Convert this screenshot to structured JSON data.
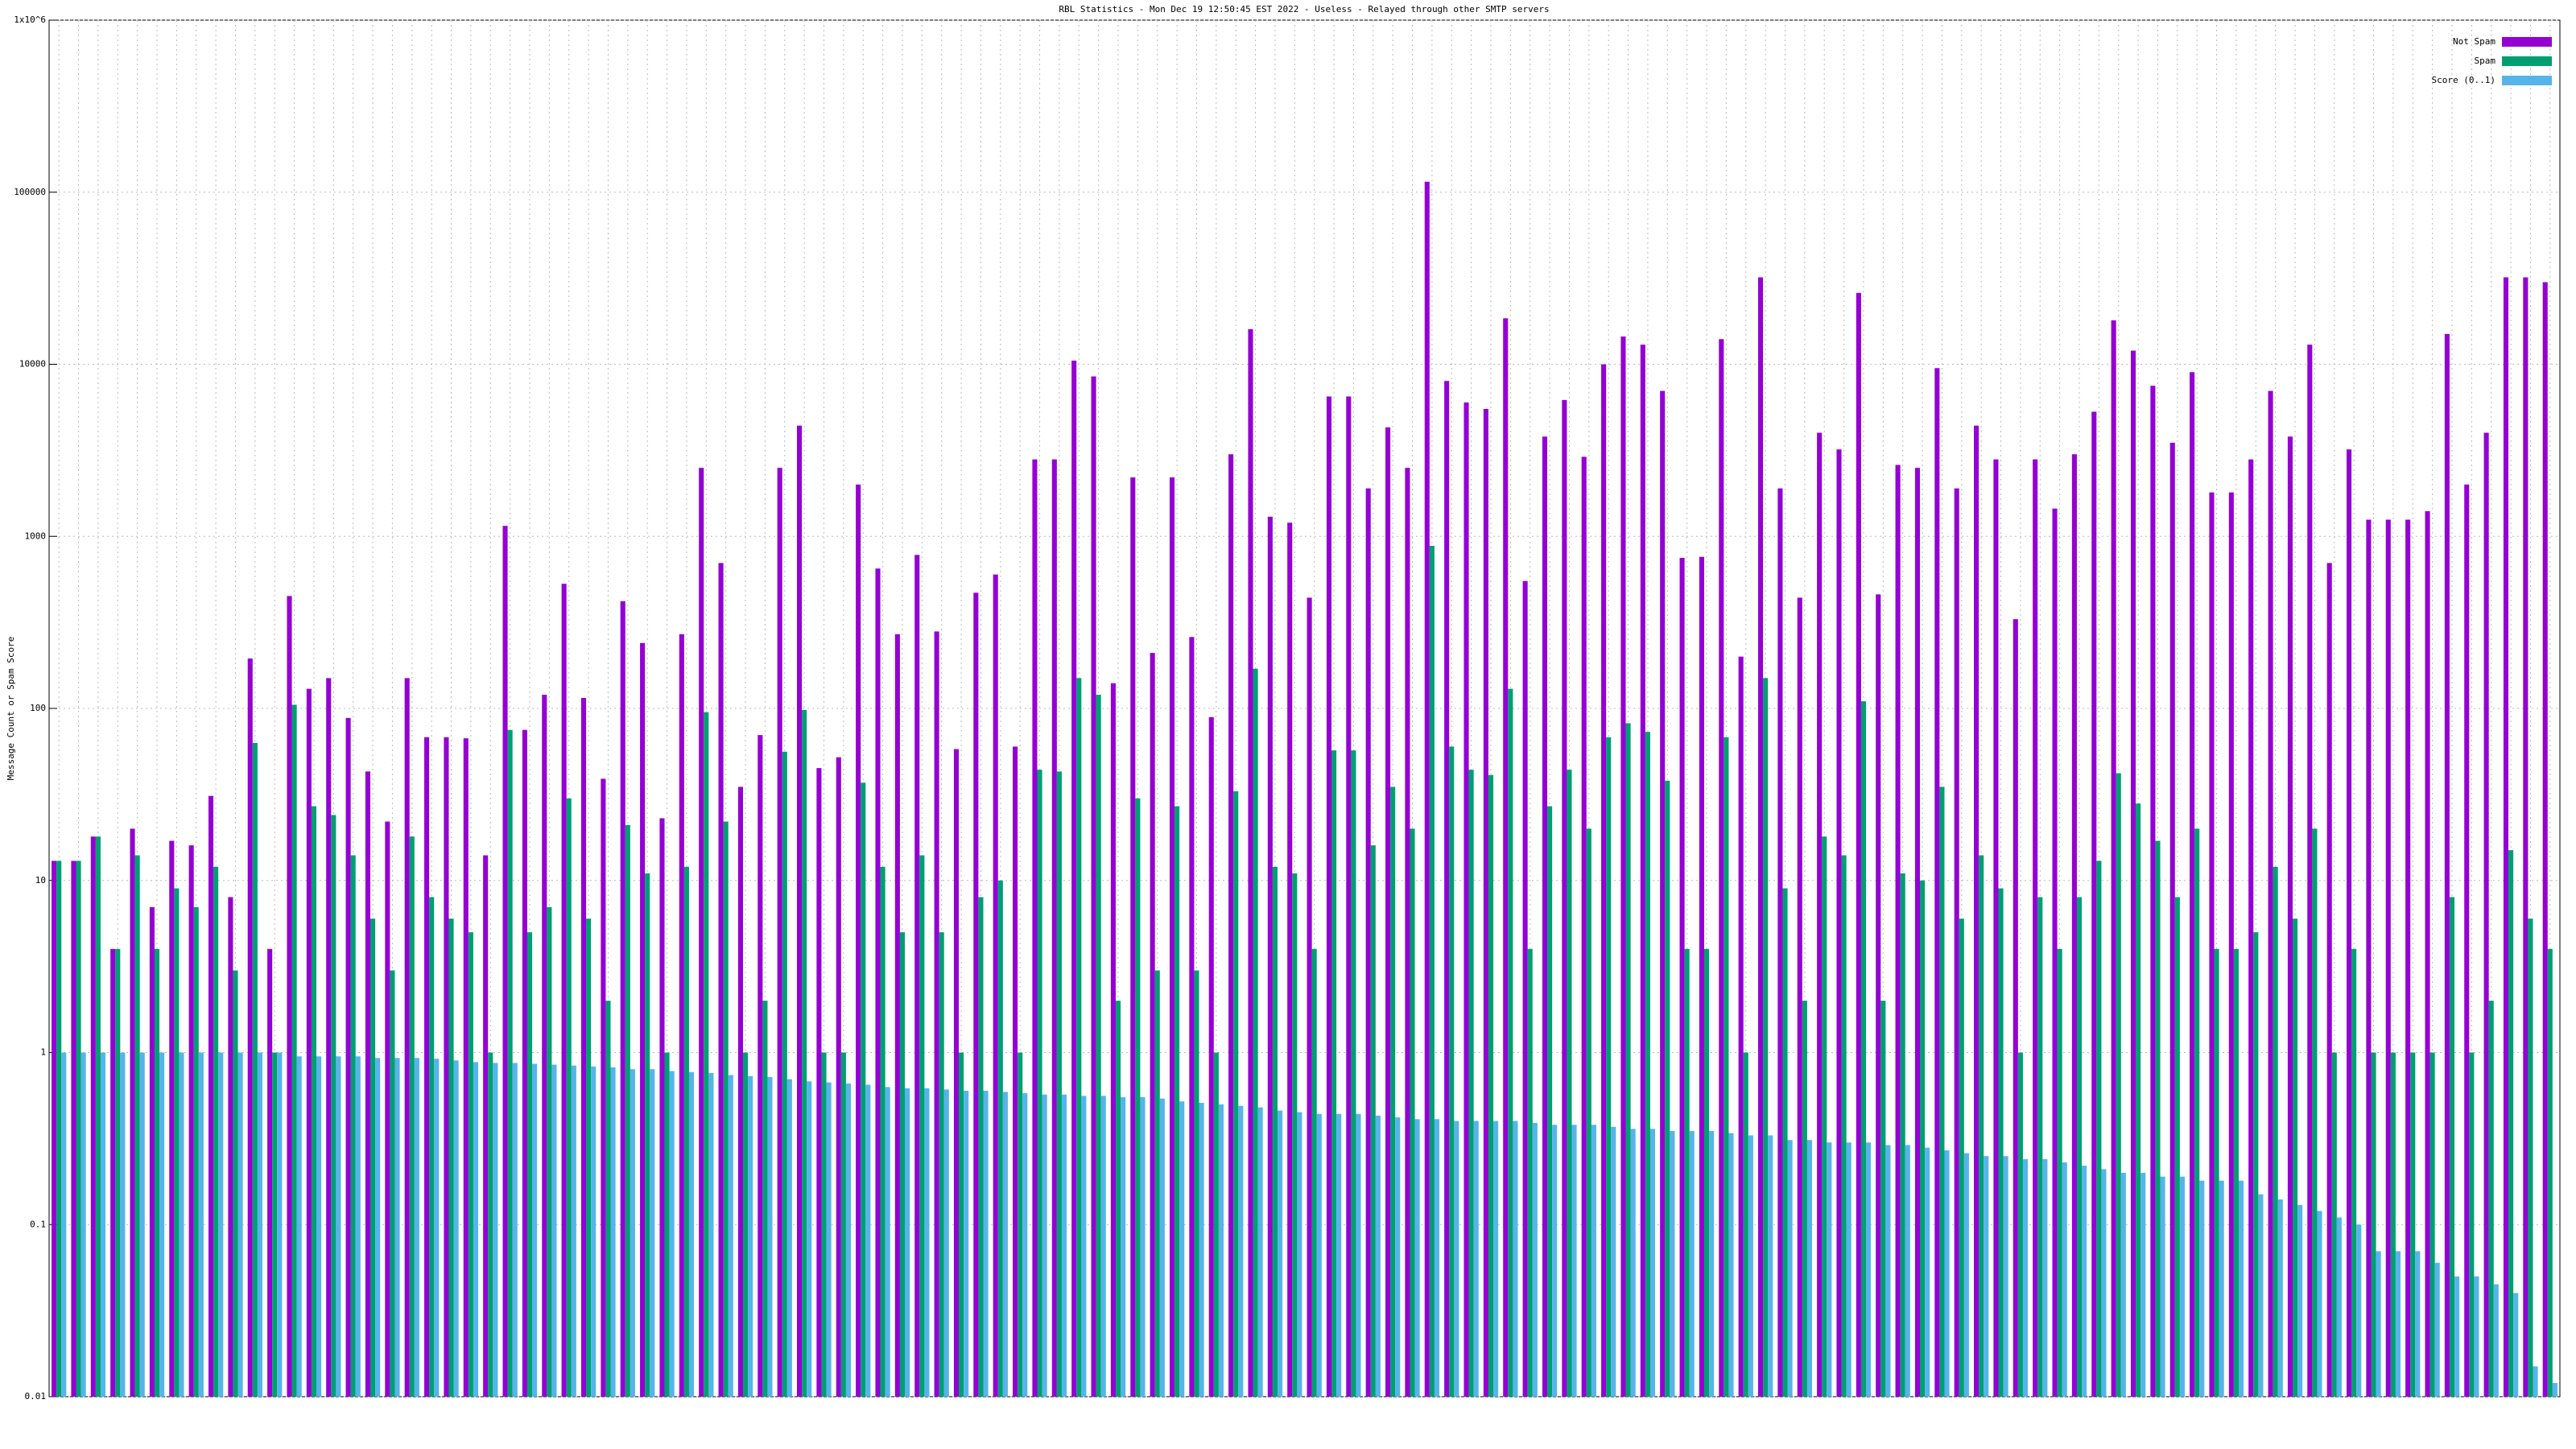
{
  "chart_data": {
    "type": "bar",
    "title": "RBL Statistics - Mon Dec 19 12:50:45 EST 2022 - Useless - Relayed through other SMTP servers",
    "y_label": "Message Count or Spam Score",
    "log_y": true,
    "grid": true,
    "legend": "top-right",
    "ylim": [
      0.01,
      1000000
    ],
    "yticks": [
      {
        "value": 0.01,
        "label": "0.01"
      },
      {
        "value": 0.1,
        "label": "0.1"
      },
      1,
      10,
      100,
      1000,
      10000,
      100000,
      {
        "value": 1000000,
        "label": "1x10^6"
      }
    ],
    "categories": [
      null,
      null,
      null,
      null,
      null,
      null,
      null,
      null,
      null,
      null,
      null,
      null,
      null,
      null,
      null,
      null,
      null,
      null,
      null,
      null,
      null,
      null,
      null,
      null,
      null,
      null,
      null,
      null,
      null,
      null,
      null,
      null,
      null,
      null,
      null,
      null,
      null,
      null,
      null,
      null,
      null,
      null,
      null,
      null,
      null,
      null,
      null,
      null,
      null,
      null,
      null,
      null,
      null,
      null,
      null,
      null,
      null,
      null,
      null,
      null,
      null,
      null,
      null,
      null,
      null,
      null,
      null,
      null,
      null,
      null,
      null,
      null,
      null,
      null,
      null,
      null,
      null,
      null,
      null,
      null,
      null,
      null,
      null,
      null,
      null,
      null,
      null,
      null,
      null,
      null,
      null,
      null,
      null,
      null,
      null,
      null,
      null,
      null,
      null,
      null,
      null,
      null,
      null,
      null,
      null,
      null,
      null,
      null,
      null,
      null,
      null,
      null,
      null,
      null,
      null,
      null,
      null,
      null,
      null,
      null,
      null,
      null,
      null,
      null,
      null,
      null,
      null,
      null
    ],
    "series": [
      {
        "name": "Not Spam",
        "color": "#9400d3",
        "values": [
          13,
          13,
          18,
          4,
          20,
          7,
          17,
          16,
          31,
          8,
          195,
          4,
          450,
          130,
          150,
          88,
          43,
          22,
          150,
          68,
          68,
          67,
          14,
          1150,
          75,
          120,
          530,
          115,
          39,
          420,
          240,
          23,
          270,
          2500,
          700,
          35,
          70,
          2500,
          4400,
          45,
          52,
          2000,
          650,
          270,
          780,
          280,
          58,
          470,
          600,
          60,
          2800,
          2800,
          10500,
          8500,
          140,
          2200,
          210,
          2200,
          260,
          89,
          3000,
          16000,
          1300,
          1200,
          440,
          6500,
          6500,
          1900,
          4300,
          2500,
          115000,
          8000,
          6000,
          5500,
          18500,
          550,
          3800,
          6200,
          2900,
          10000,
          14500,
          13000,
          7000,
          750,
          760,
          14000,
          200,
          32000,
          1900,
          440,
          4000,
          3200,
          26000,
          460,
          2600,
          2500,
          9500,
          1900,
          4400,
          2800,
          330,
          2800,
          1450,
          3000,
          5300,
          18000,
          12000,
          7500,
          3500,
          9000,
          1800,
          1800,
          2800,
          7000,
          3800,
          13000,
          700,
          3200,
          1250,
          1250,
          1250,
          1400,
          15000,
          2000,
          4000,
          32000,
          32000,
          30000
        ]
      },
      {
        "name": "Spam",
        "color": "#009e73",
        "values": [
          13,
          13,
          18,
          4,
          14,
          4,
          9,
          7,
          12,
          3,
          63,
          1,
          105,
          27,
          24,
          14,
          6,
          3,
          18,
          8,
          6,
          5,
          1,
          75,
          5,
          7,
          30,
          6,
          2,
          21,
          11,
          1,
          12,
          95,
          22,
          1,
          2,
          56,
          98,
          1,
          1,
          37,
          12,
          5,
          14,
          5,
          1,
          8,
          10,
          1,
          44,
          43,
          150,
          120,
          2,
          30,
          3,
          27,
          3,
          1,
          33,
          170,
          12,
          11,
          4,
          57,
          57,
          16,
          35,
          20,
          880,
          60,
          44,
          41,
          130,
          4,
          27,
          44,
          20,
          68,
          82,
          73,
          38,
          4,
          4,
          68,
          1,
          150,
          9,
          2,
          18,
          14,
          110,
          2,
          11,
          10,
          35,
          6,
          14,
          9,
          1,
          8,
          4,
          8,
          13,
          42,
          28,
          17,
          8,
          20,
          4,
          4,
          5,
          12,
          6,
          20,
          1,
          4,
          1,
          1,
          1,
          1,
          8,
          1,
          2,
          15,
          6,
          4
        ]
      },
      {
        "name": "Score (0..1)",
        "color": "#56b4e9",
        "values": [
          1,
          1,
          1,
          1,
          1,
          1,
          1,
          1,
          1,
          1,
          1,
          1,
          0.95,
          0.95,
          0.95,
          0.95,
          0.93,
          0.93,
          0.93,
          0.92,
          0.9,
          0.88,
          0.87,
          0.87,
          0.86,
          0.85,
          0.84,
          0.83,
          0.82,
          0.8,
          0.8,
          0.78,
          0.77,
          0.76,
          0.74,
          0.73,
          0.72,
          0.7,
          0.68,
          0.67,
          0.66,
          0.65,
          0.63,
          0.62,
          0.62,
          0.61,
          0.6,
          0.6,
          0.59,
          0.58,
          0.57,
          0.57,
          0.56,
          0.56,
          0.55,
          0.55,
          0.54,
          0.52,
          0.51,
          0.5,
          0.49,
          0.48,
          0.46,
          0.45,
          0.44,
          0.44,
          0.44,
          0.43,
          0.42,
          0.41,
          0.41,
          0.4,
          0.4,
          0.4,
          0.4,
          0.39,
          0.38,
          0.38,
          0.38,
          0.37,
          0.36,
          0.36,
          0.35,
          0.35,
          0.35,
          0.34,
          0.33,
          0.33,
          0.31,
          0.31,
          0.3,
          0.3,
          0.3,
          0.29,
          0.29,
          0.28,
          0.27,
          0.26,
          0.25,
          0.25,
          0.24,
          0.24,
          0.23,
          0.22,
          0.21,
          0.2,
          0.2,
          0.19,
          0.19,
          0.18,
          0.18,
          0.18,
          0.15,
          0.14,
          0.13,
          0.12,
          0.11,
          0.1,
          0.07,
          0.07,
          0.07,
          0.06,
          0.05,
          0.05,
          0.045,
          0.04,
          0.015,
          0.012
        ]
      }
    ]
  }
}
